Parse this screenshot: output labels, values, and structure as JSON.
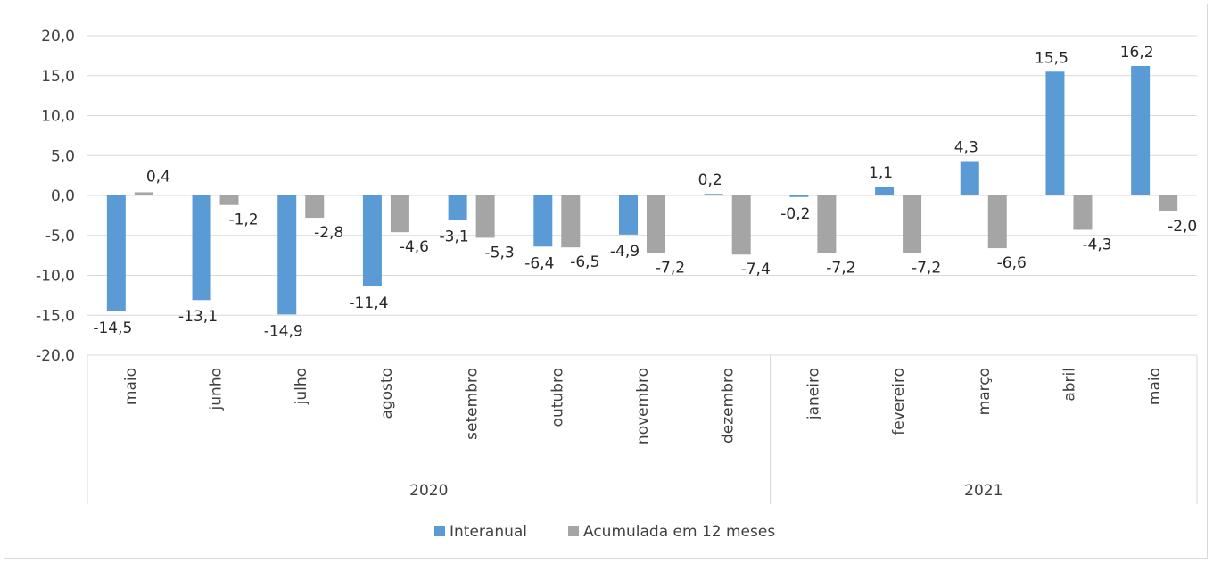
{
  "chart_data": {
    "type": "bar",
    "title": "",
    "xlabel": "",
    "ylabel": "",
    "ylim": [
      -20,
      20
    ],
    "y_ticks": [
      "20,0",
      "15,0",
      "10,0",
      "5,0",
      "0,0",
      "-5,0",
      "-10,0",
      "-15,0",
      "-20,0"
    ],
    "y_tick_values": [
      20,
      15,
      10,
      5,
      0,
      -5,
      -10,
      -15,
      -20
    ],
    "grid": true,
    "legend_position": "bottom",
    "categories": [
      "maio",
      "junho",
      "julho",
      "agosto",
      "setembro",
      "outubro",
      "novembro",
      "dezembro",
      "janeiro",
      "fevereiro",
      "março",
      "abril",
      "maio"
    ],
    "groups": [
      {
        "label": "2020",
        "count": 8
      },
      {
        "label": "2021",
        "count": 5
      }
    ],
    "series": [
      {
        "name": "Interanual",
        "color": "#5b9bd5",
        "values": [
          -14.5,
          -13.1,
          -14.9,
          -11.4,
          -3.1,
          -6.4,
          -4.9,
          0.2,
          -0.2,
          1.1,
          4.3,
          15.5,
          16.2
        ],
        "labels": [
          "-14,5",
          "-13,1",
          "-14,9",
          "-11,4",
          "-3,1",
          "-6,4",
          "-4,9",
          "0,2",
          "-0,2",
          "1,1",
          "4,3",
          "15,5",
          "16,2"
        ]
      },
      {
        "name": "Acumulada em 12 meses",
        "color": "#a5a5a5",
        "values": [
          0.4,
          -1.2,
          -2.8,
          -4.6,
          -5.3,
          -6.5,
          -7.2,
          -7.4,
          -7.2,
          -7.2,
          -6.6,
          -4.3,
          -2.0
        ],
        "labels": [
          "0,4",
          "-1,2",
          "-2,8",
          "-4,6",
          "-5,3",
          "-6,5",
          "-7,2",
          "-7,4",
          "-7,2",
          "-7,2",
          "-6,6",
          "-4,3",
          "-2,0"
        ]
      }
    ]
  }
}
